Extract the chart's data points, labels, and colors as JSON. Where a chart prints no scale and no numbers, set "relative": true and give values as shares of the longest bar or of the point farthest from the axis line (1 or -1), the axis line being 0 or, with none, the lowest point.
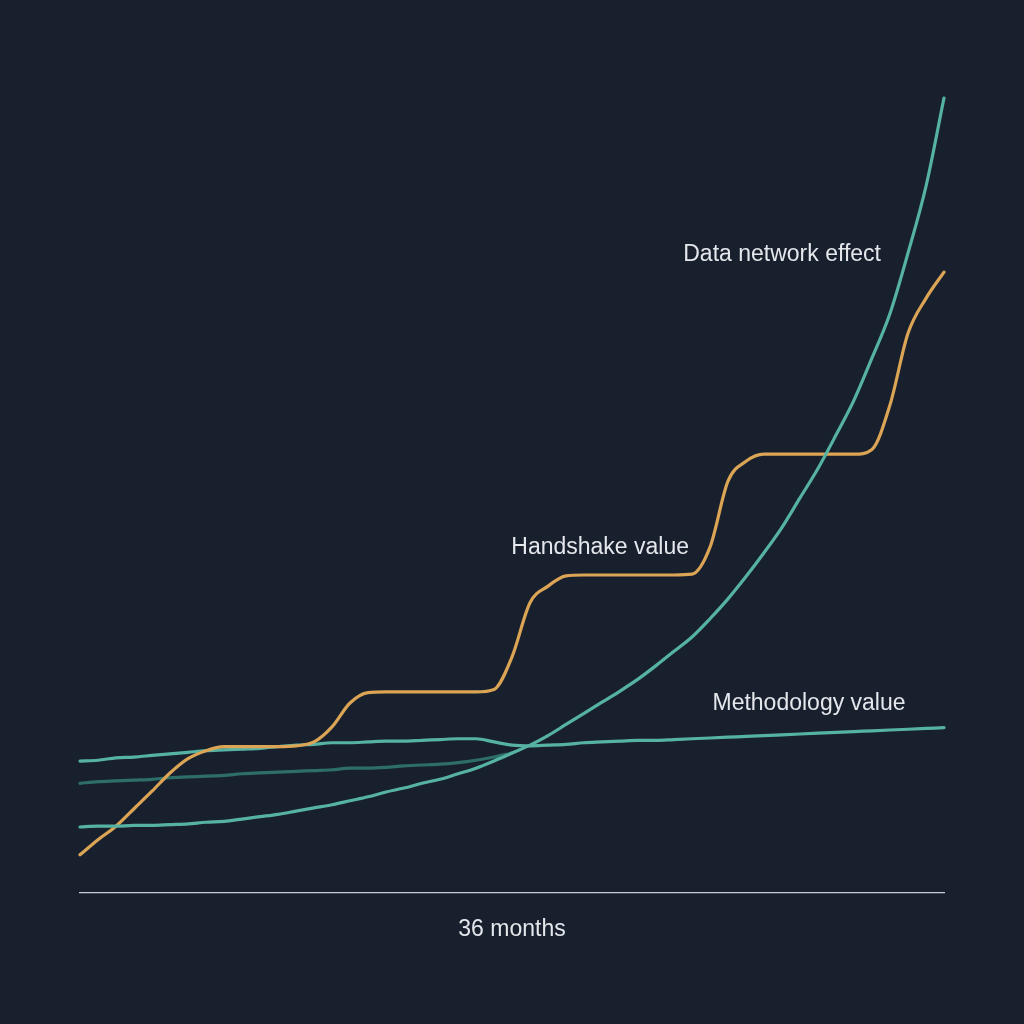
{
  "chart_data": {
    "type": "line",
    "relative": true,
    "xlabel": "36 months",
    "marker": "none",
    "line_style": "solid",
    "categories": [
      null,
      null,
      null,
      null,
      null,
      null,
      null,
      null,
      null,
      null,
      null,
      null,
      null,
      null,
      null,
      null,
      null,
      null,
      null,
      null,
      null,
      null,
      null,
      null,
      null,
      null,
      null,
      null,
      null,
      null,
      null,
      null,
      null,
      null,
      null,
      null,
      null,
      null,
      null,
      null,
      null,
      null,
      null,
      null,
      null,
      null,
      null,
      null,
      null
    ],
    "series": [
      {
        "name": "Data network effect",
        "color": "#56b3a4",
        "values": [
          0.083,
          0.084,
          0.084,
          0.085,
          0.085,
          0.086,
          0.087,
          0.089,
          0.09,
          0.093,
          0.096,
          0.099,
          0.103,
          0.107,
          0.111,
          0.116,
          0.121,
          0.127,
          0.132,
          0.138,
          0.143,
          0.15,
          0.157,
          0.166,
          0.176,
          0.186,
          0.198,
          0.212,
          0.226,
          0.24,
          0.254,
          0.269,
          0.286,
          0.304,
          0.322,
          0.345,
          0.37,
          0.398,
          0.428,
          0.46,
          0.497,
          0.534,
          0.576,
          0.62,
          0.673,
          0.729,
          0.805,
          0.889,
          1
        ]
      },
      {
        "name": "Handshake value",
        "color": "#dba555",
        "values": [
          0.048,
          0.067,
          0.084,
          0.106,
          0.128,
          0.151,
          0.169,
          0.179,
          0.184,
          0.184,
          0.184,
          0.184,
          0.185,
          0.19,
          0.209,
          0.239,
          0.252,
          0.253,
          0.253,
          0.253,
          0.253,
          0.253,
          0.253,
          0.256,
          0.297,
          0.365,
          0.386,
          0.399,
          0.4,
          0.4,
          0.4,
          0.4,
          0.4,
          0.4,
          0.401,
          0.435,
          0.518,
          0.543,
          0.552,
          0.552,
          0.552,
          0.552,
          0.552,
          0.552,
          0.558,
          0.614,
          0.704,
          0.748,
          0.781
        ]
      },
      {
        "name": "Methodology value",
        "color": "#56b3a4",
        "values": [
          0.166,
          0.167,
          0.17,
          0.171,
          0.173,
          0.175,
          0.177,
          0.179,
          0.18,
          0.181,
          0.182,
          0.184,
          0.186,
          0.187,
          0.189,
          0.189,
          0.19,
          0.191,
          0.191,
          0.192,
          0.193,
          0.194,
          0.194,
          0.19,
          0.186,
          0.185,
          0.186,
          0.187,
          0.189,
          0.19,
          0.191,
          0.192,
          0.192,
          0.193,
          0.194,
          0.195,
          0.196,
          0.197,
          0.198,
          0.199,
          0.2,
          0.201,
          0.202,
          0.203,
          0.204,
          0.205,
          0.206,
          0.207,
          0.208
        ]
      },
      {
        "color": "#2e6e68",
        "values": [
          0.138,
          0.14,
          0.141,
          0.142,
          0.143,
          0.145,
          0.146,
          0.147,
          0.148,
          0.15,
          0.151,
          0.152,
          0.153,
          0.154,
          0.155,
          0.157,
          0.157,
          0.158,
          0.16,
          0.161,
          0.162,
          0.164,
          0.167,
          0.171,
          0.176,
          null,
          null,
          null,
          null,
          null,
          null,
          null,
          null,
          null,
          null,
          null,
          null,
          null,
          null,
          null,
          null,
          null,
          null,
          null,
          null,
          null,
          null,
          null,
          null
        ]
      }
    ]
  }
}
